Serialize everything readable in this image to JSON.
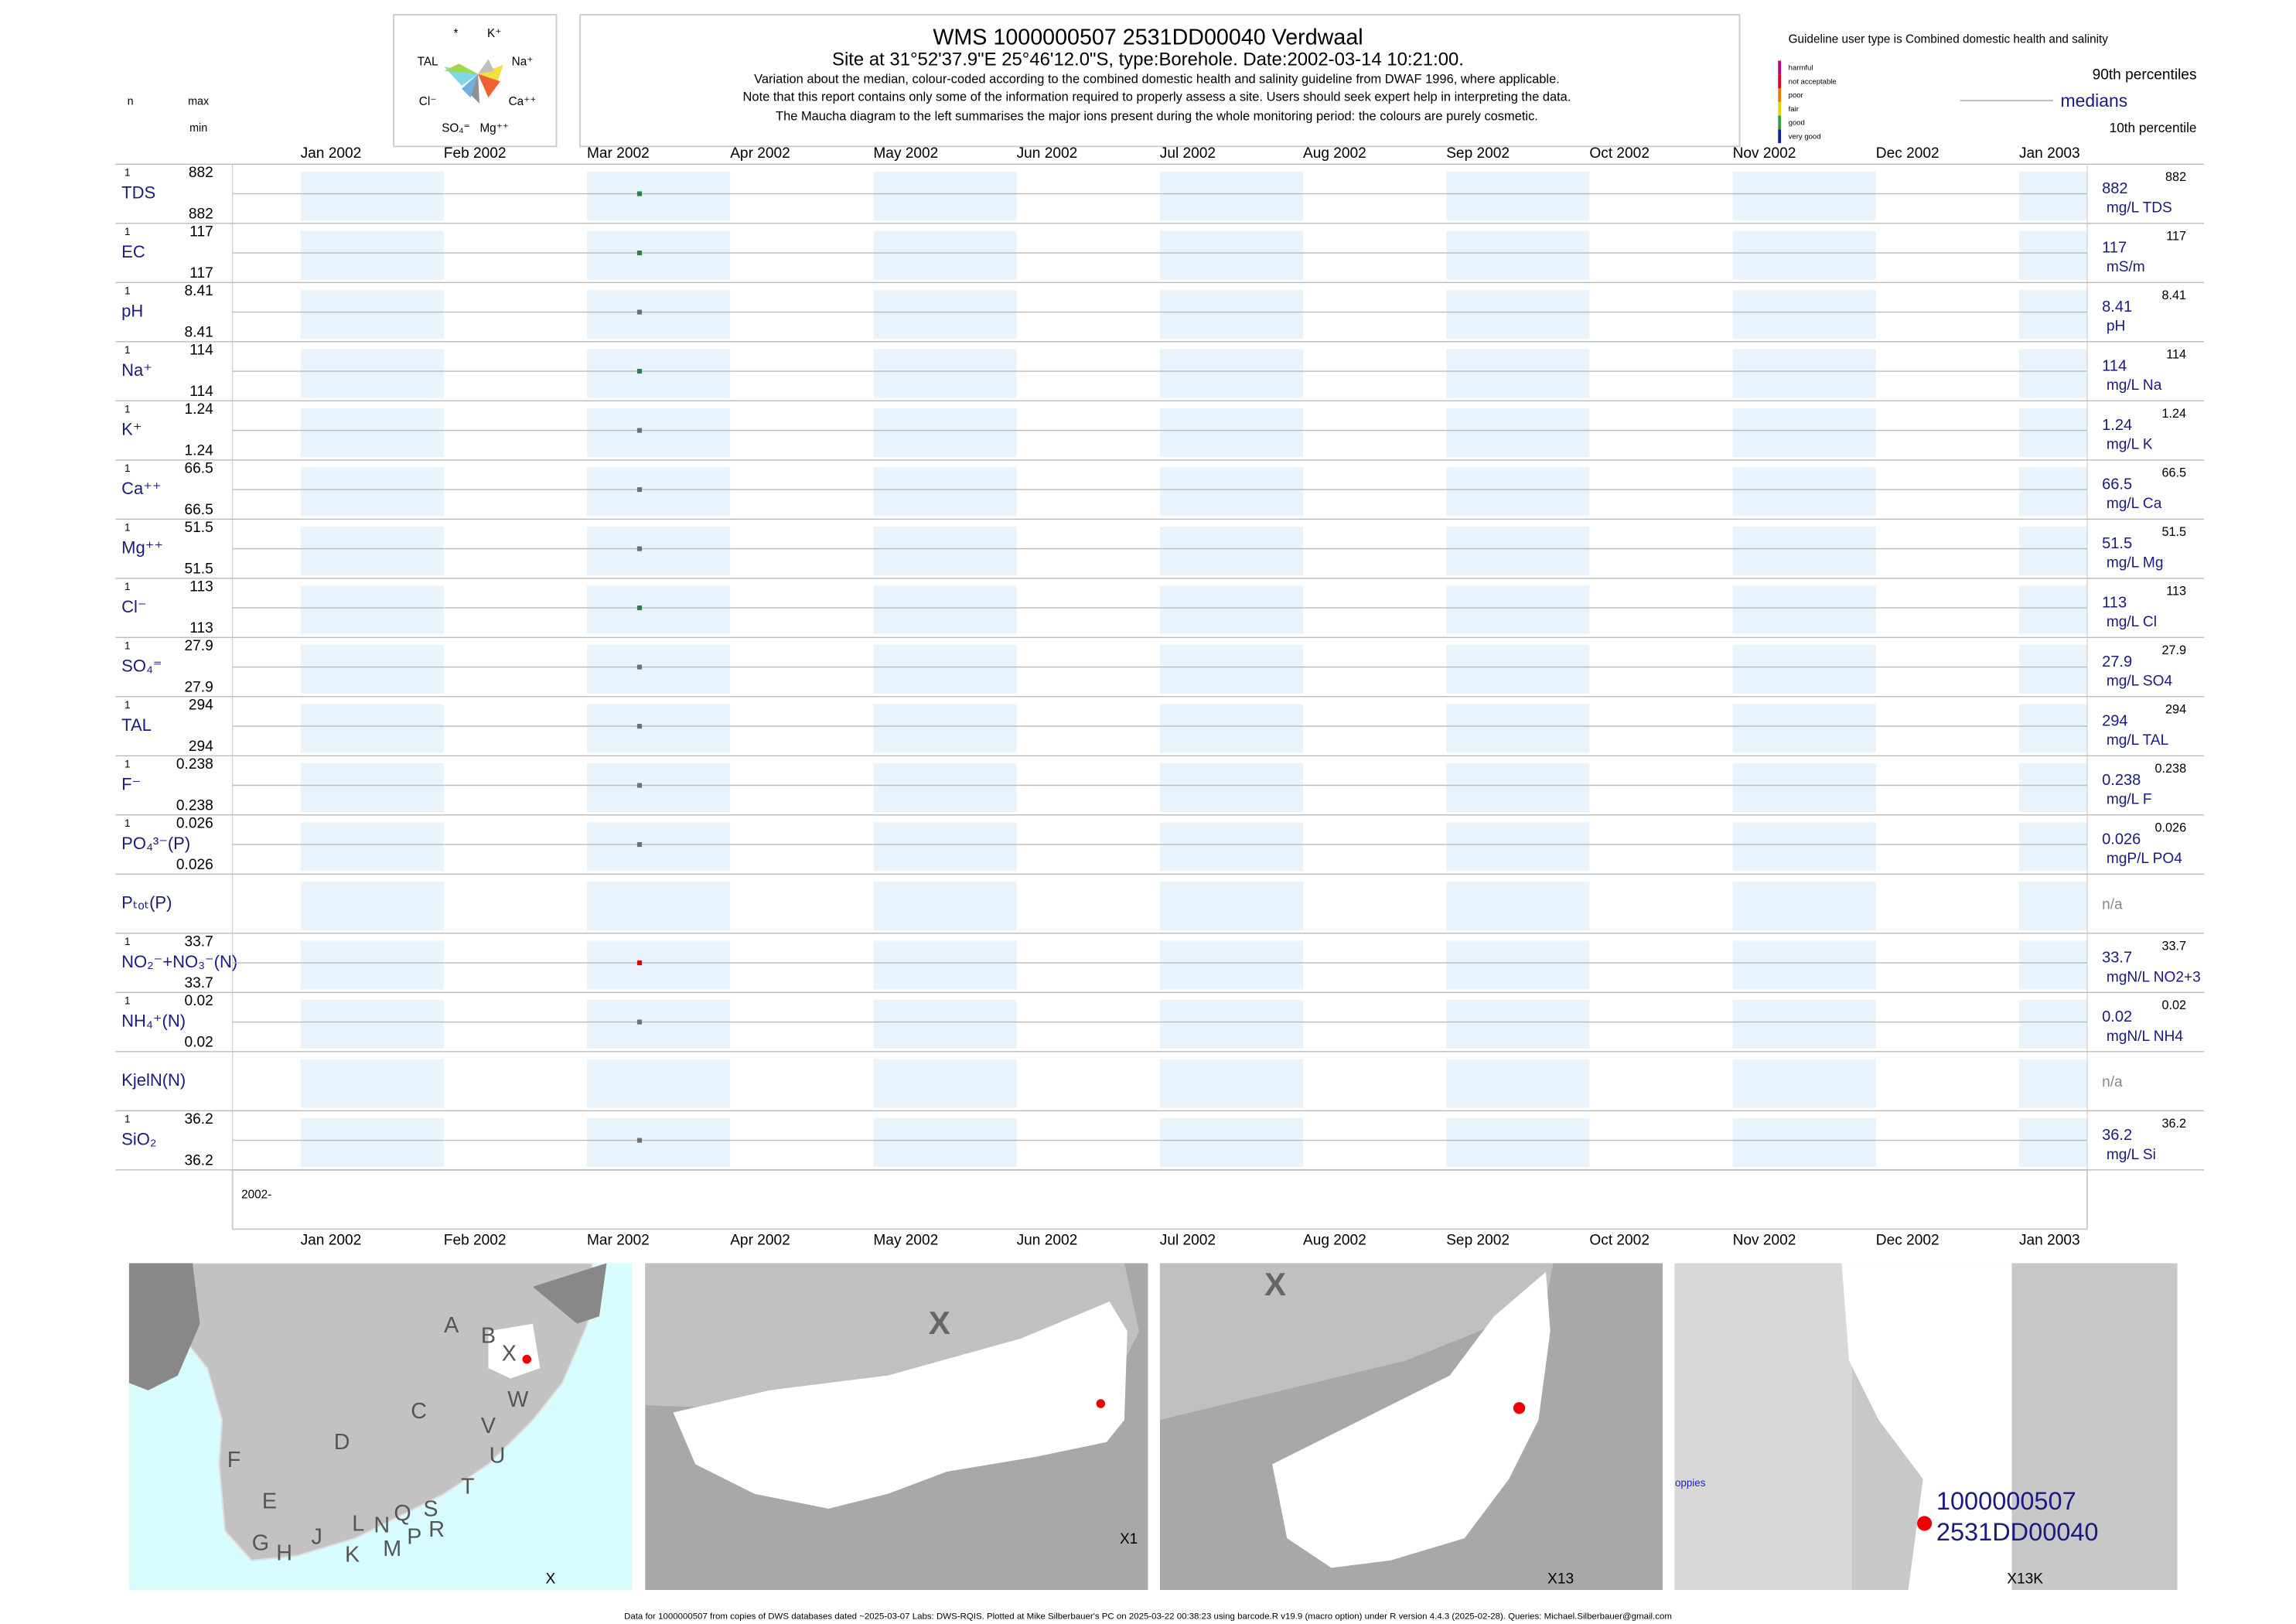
{
  "header": {
    "title": "WMS 1000000507 2531DD00040 Verdwaal",
    "subtitle": "Site at 31°52'37.9\"E 25°46'12.0\"S, type:Borehole. Date:2002-03-14 10:21:00.",
    "notes": [
      "Variation about the median,  colour-coded according to the combined domestic health and salinity guideline from DWAF 1996, where applicable.",
      "Note that this report contains only some of the information required to properly assess a site. Users should seek expert help in interpreting the data.",
      "The Maucha diagram to the left summarises the major ions present during the whole monitoring period: the colours are purely cosmetic."
    ]
  },
  "maucha_labels": [
    "*",
    "K⁺",
    "TAL",
    "Na⁺",
    "Cl⁻",
    "Ca⁺⁺",
    "SO₄⁼",
    "Mg⁺⁺"
  ],
  "column_headers": {
    "n": "n",
    "max": "max",
    "min": "min"
  },
  "guideline": {
    "title": "Guideline user type is Combined domestic health and salinity",
    "classes": [
      {
        "name": "harmful",
        "color": "#c0007f"
      },
      {
        "name": "not acceptable",
        "color": "#e0002a"
      },
      {
        "name": "poor",
        "color": "#f07800"
      },
      {
        "name": "fair",
        "color": "#e8d000"
      },
      {
        "name": "good",
        "color": "#30a040"
      },
      {
        "name": "very good",
        "color": "#1020a0"
      }
    ],
    "upper": "90th percentiles",
    "middle": "medians",
    "lower": "10th percentile"
  },
  "months": [
    "Jan 2002",
    "Feb 2002",
    "Mar 2002",
    "Apr 2002",
    "May 2002",
    "Jun 2002",
    "Jul 2002",
    "Aug 2002",
    "Sep 2002",
    "Oct 2002",
    "Nov 2002",
    "Dec 2002",
    "Jan 2003"
  ],
  "period_label": "2002-",
  "rows": [
    {
      "label": "TDS",
      "n": 1,
      "max": 882,
      "min": 882,
      "median": 882,
      "unit": "mg/L TDS",
      "color": "#2e7d4f"
    },
    {
      "label": "EC",
      "n": 1,
      "max": 117,
      "min": 117,
      "median": 117,
      "unit": "mS/m",
      "color": "#2e7d4f"
    },
    {
      "label": "pH",
      "n": 1,
      "max": 8.41,
      "min": 8.41,
      "median": 8.41,
      "unit": "pH",
      "color": "#707070"
    },
    {
      "label": "Na⁺",
      "n": 1,
      "max": 114,
      "min": 114,
      "median": 114,
      "unit": "mg/L Na",
      "color": "#2e7d4f"
    },
    {
      "label": "K⁺",
      "n": 1,
      "max": 1.24,
      "min": 1.24,
      "median": 1.24,
      "unit": "mg/L K",
      "color": "#707070"
    },
    {
      "label": "Ca⁺⁺",
      "n": 1,
      "max": 66.5,
      "min": 66.5,
      "median": 66.5,
      "unit": "mg/L Ca",
      "color": "#707070"
    },
    {
      "label": "Mg⁺⁺",
      "n": 1,
      "max": 51.5,
      "min": 51.5,
      "median": 51.5,
      "unit": "mg/L Mg",
      "color": "#707070"
    },
    {
      "label": "Cl⁻",
      "n": 1,
      "max": 113,
      "min": 113,
      "median": 113,
      "unit": "mg/L Cl",
      "color": "#2e7d4f"
    },
    {
      "label": "SO₄⁼",
      "n": 1,
      "max": 27.9,
      "min": 27.9,
      "median": 27.9,
      "unit": "mg/L SO4",
      "color": "#707070"
    },
    {
      "label": "TAL",
      "n": 1,
      "max": 294,
      "min": 294,
      "median": 294,
      "unit": "mg/L TAL",
      "color": "#707070"
    },
    {
      "label": "F⁻",
      "n": 1,
      "max": 0.238,
      "min": 0.238,
      "median": 0.238,
      "unit": "mg/L F",
      "color": "#707070"
    },
    {
      "label": "PO₄³⁻(P)",
      "n": 1,
      "max": 0.026,
      "min": 0.026,
      "median": 0.026,
      "unit": "mgP/L PO4",
      "color": "#707070"
    },
    {
      "label": "Pₜₒₜ(P)",
      "status": "n/a"
    },
    {
      "label": "NO₂⁻+NO₃⁻(N)",
      "n": 1,
      "max": 33.7,
      "min": 33.7,
      "median": 33.7,
      "unit": "mgN/L NO2+3",
      "color": "#e00000"
    },
    {
      "label": "NH₄⁺(N)",
      "n": 1,
      "max": 0.02,
      "min": 0.02,
      "median": 0.02,
      "unit": "mgN/L NH4",
      "color": "#707070"
    },
    {
      "label": "KjelN(N)",
      "status": "n/a"
    },
    {
      "label": "SiO₂",
      "n": 1,
      "max": 36.2,
      "min": 36.2,
      "median": 36.2,
      "unit": "mg/L Si",
      "color": "#707070"
    }
  ],
  "maps": [
    {
      "label": "X",
      "regions": [
        "A",
        "B",
        "X",
        "W",
        "C",
        "V",
        "U",
        "D",
        "T",
        "F",
        "E",
        "S",
        "R",
        "G",
        "H",
        "J",
        "K",
        "L",
        "N",
        "Q",
        "M",
        "P"
      ]
    },
    {
      "label": "X1",
      "marker": "X"
    },
    {
      "label": "X13",
      "marker": "X"
    },
    {
      "label": "X13K",
      "site": [
        "1000000507",
        "2531DD00040"
      ],
      "place": "Driekoppies"
    }
  ],
  "footer": "Data for 1000000507 from copies of DWS databases dated ~2025-03-07 Labs: DWS-RQIS. Plotted at Mike Silberbauer's PC on 2025-03-22 00:38:23 using barcode.R v19.9 (macro option) under R version 4.4.3 (2025-02-28). Queries: Michael.Silberbauer@gmail.com"
}
